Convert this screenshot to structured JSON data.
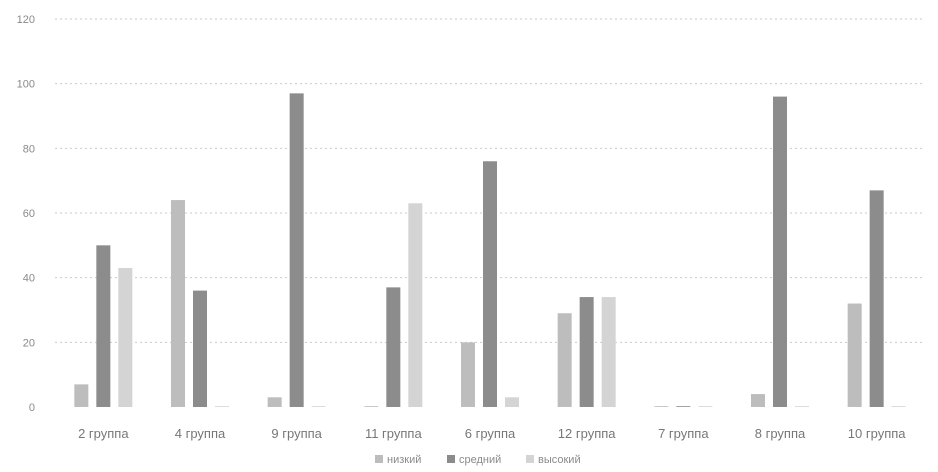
{
  "chart_data": {
    "type": "bar",
    "categories": [
      "2 группа",
      "4 группа",
      "9 группа",
      "11 группа",
      "6 группа",
      "12 группа",
      "7 группа",
      "8 группа",
      "10 группа"
    ],
    "series": [
      {
        "name": "низкий",
        "color": "#bdbdbd",
        "values": [
          7,
          64,
          3,
          0,
          20,
          29,
          0,
          4,
          32
        ]
      },
      {
        "name": "средний",
        "color": "#8c8c8c",
        "values": [
          50,
          36,
          97,
          37,
          76,
          34,
          0,
          96,
          67
        ]
      },
      {
        "name": "высокий",
        "color": "#d4d4d4",
        "values": [
          43,
          0,
          0,
          63,
          3,
          34,
          0,
          0,
          0
        ]
      }
    ],
    "yticks": [
      "0",
      "20",
      "40",
      "60",
      "80",
      "100",
      "120"
    ],
    "ylim": [
      0,
      120
    ],
    "grid": true,
    "legend": "bottom-center"
  }
}
